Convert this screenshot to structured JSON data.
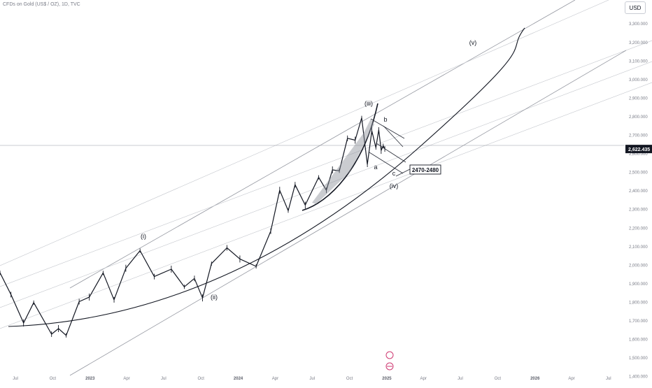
{
  "header": {
    "title": "CFDs on Gold (US$ / OZ), 1D, TVC"
  },
  "currency_button": {
    "label": "USD"
  },
  "price_axis": {
    "ticks": [
      "3,300.000",
      "3,200.000",
      "3,100.000",
      "3,000.000",
      "2,900.000",
      "2,800.000",
      "2,700.000",
      "2,600.000",
      "2,500.000",
      "2,400.000",
      "2,300.000",
      "2,200.000",
      "2,100.000",
      "2,000.000",
      "1,900.000",
      "1,800.000",
      "1,700.000",
      "1,600.000",
      "1,500.000",
      "1,400.000"
    ],
    "last_price": "2,622.435"
  },
  "time_axis": {
    "ticks": [
      "Jul",
      "Oct",
      "2023",
      "Apr",
      "Jul",
      "Oct",
      "2024",
      "Apr",
      "Jul",
      "Oct",
      "2025",
      "Apr",
      "Jul",
      "Oct",
      "2026",
      "Apr",
      "Jul"
    ]
  },
  "annotations": {
    "wave_i": "(i)",
    "wave_ii": "(ii)",
    "wave_iii": "(iii)",
    "wave_iv": "(iv)",
    "wave_v": "(v)",
    "a": "a",
    "b": "b",
    "c": "c",
    "target_box": "2470-2480"
  },
  "chart_data": {
    "type": "line",
    "title": "CFDs on Gold (US$ / OZ), 1D, TVC",
    "xlabel": "",
    "ylabel": "",
    "ylim": [
      1380,
      3380
    ],
    "x_range": [
      "2022-05-24",
      "2026-08-10"
    ],
    "grid": false,
    "current_price": 2622.435,
    "series": [
      {
        "values": [
          {
            "x": "2022-05-24",
            "y": 1956
          },
          {
            "x": "2022-06-20",
            "y": 1838
          },
          {
            "x": "2022-07-21",
            "y": 1685
          },
          {
            "x": "2022-08-15",
            "y": 1795
          },
          {
            "x": "2022-09-28",
            "y": 1625
          },
          {
            "x": "2022-10-15",
            "y": 1655
          },
          {
            "x": "2022-11-03",
            "y": 1618
          },
          {
            "x": "2022-12-05",
            "y": 1800
          },
          {
            "x": "2022-12-30",
            "y": 1825
          },
          {
            "x": "2023-02-02",
            "y": 1955
          },
          {
            "x": "2023-03-01",
            "y": 1810
          },
          {
            "x": "2023-03-30",
            "y": 1980
          },
          {
            "x": "2023-05-04",
            "y": 2075
          },
          {
            "x": "2023-06-08",
            "y": 1935
          },
          {
            "x": "2023-07-20",
            "y": 1975
          },
          {
            "x": "2023-08-21",
            "y": 1880
          },
          {
            "x": "2023-09-15",
            "y": 1925
          },
          {
            "x": "2023-10-05",
            "y": 1820
          },
          {
            "x": "2023-10-27",
            "y": 2005
          },
          {
            "x": "2023-12-04",
            "y": 2090
          },
          {
            "x": "2024-01-05",
            "y": 2030
          },
          {
            "x": "2024-02-14",
            "y": 1990
          },
          {
            "x": "2024-03-21",
            "y": 2180
          },
          {
            "x": "2024-04-12",
            "y": 2400
          },
          {
            "x": "2024-05-03",
            "y": 2290
          },
          {
            "x": "2024-05-20",
            "y": 2430
          },
          {
            "x": "2024-06-14",
            "y": 2320
          },
          {
            "x": "2024-07-17",
            "y": 2470
          },
          {
            "x": "2024-08-05",
            "y": 2400
          },
          {
            "x": "2024-08-20",
            "y": 2510
          },
          {
            "x": "2024-09-06",
            "y": 2505
          },
          {
            "x": "2024-09-26",
            "y": 2680
          },
          {
            "x": "2024-10-15",
            "y": 2670
          },
          {
            "x": "2024-10-31",
            "y": 2790
          },
          {
            "x": "2024-11-14",
            "y": 2540
          },
          {
            "x": "2024-11-25",
            "y": 2720
          },
          {
            "x": "2024-12-05",
            "y": 2630
          },
          {
            "x": "2024-12-12",
            "y": 2725
          },
          {
            "x": "2024-12-18",
            "y": 2615
          },
          {
            "x": "2024-12-23",
            "y": 2640
          },
          {
            "x": "2024-12-27",
            "y": 2622.435
          }
        ]
      }
    ],
    "elliott_wave_labels": [
      "(i)",
      "(ii)",
      "(iii)",
      "(iv)",
      "(v)",
      "a",
      "b",
      "c"
    ],
    "target_zone_label": "2470-2480"
  }
}
